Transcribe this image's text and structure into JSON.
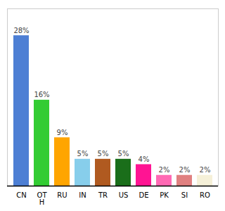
{
  "chart_data": {
    "type": "bar",
    "categories": [
      "CN",
      "OT\nH",
      "RU",
      "IN",
      "TR",
      "US",
      "DE",
      "PK",
      "SI",
      "RO"
    ],
    "values": [
      28,
      16,
      9,
      5,
      5,
      5,
      4,
      2,
      2,
      2
    ],
    "value_labels": [
      "28%",
      "16%",
      "9%",
      "5%",
      "5%",
      "5%",
      "4%",
      "2%",
      "2%",
      "2%"
    ],
    "colors": [
      "#4d7fd4",
      "#33cc33",
      "#FFA500",
      "#87CEEB",
      "#b05a20",
      "#1a6e1a",
      "#FF1493",
      "#FF69B4",
      "#e08080",
      "#f5f0d8"
    ],
    "ylim": [
      0,
      33
    ],
    "data_labels": true,
    "tick_labels": "x"
  }
}
